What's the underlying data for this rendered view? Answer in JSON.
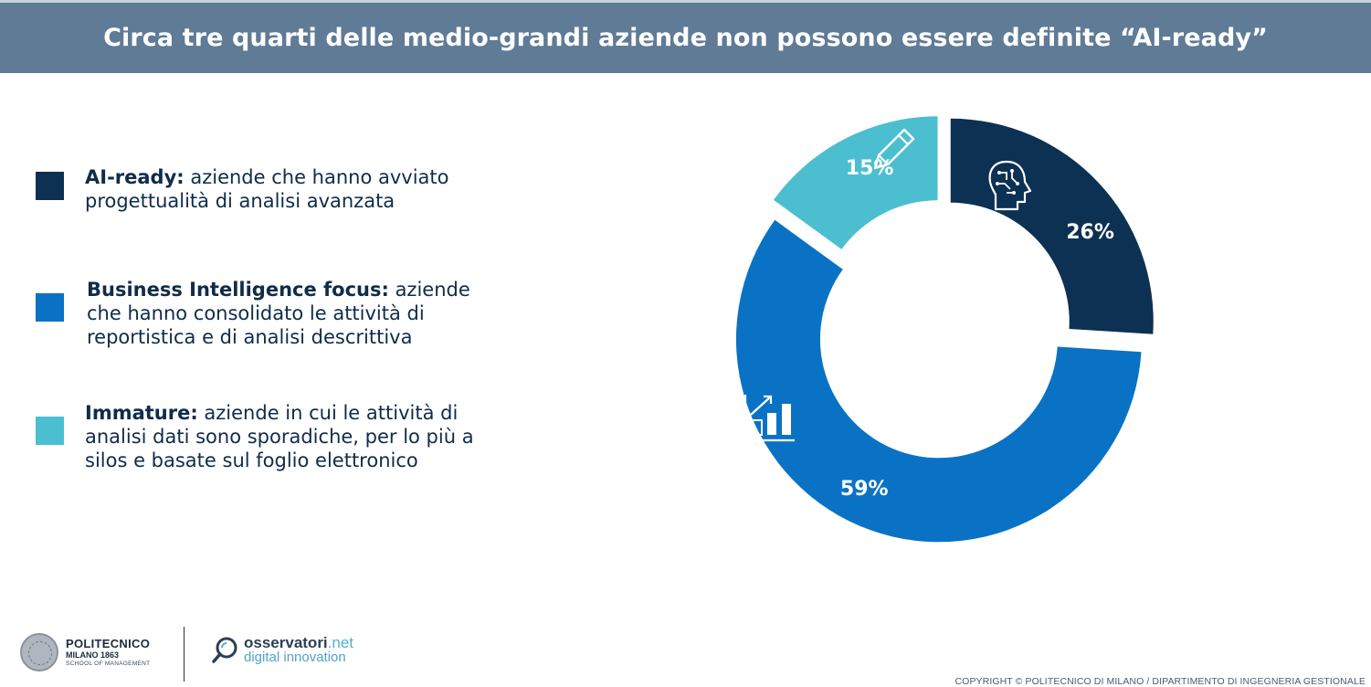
{
  "header": {
    "title": "Circa tre quarti delle medio-grandi aziende non possono essere definite “AI-ready”"
  },
  "legend": [
    {
      "term": "AI-ready:",
      "desc": " aziende che hanno avviato progettualità di analisi avanzata",
      "color": "#0d3153"
    },
    {
      "term": "Business Intelligence focus:",
      "desc": " aziende che hanno consolidato le attività di reportistica e di analisi descrittiva",
      "color": "#0a72c4"
    },
    {
      "term": "Immature:",
      "desc": " aziende in cui le attività di analisi dati sono sporadiche, per lo più a silos e basate sul foglio elettronico",
      "color": "#4bbfcf"
    }
  ],
  "chart_data": {
    "type": "pie",
    "categories": [
      "AI-ready",
      "Business Intelligence focus",
      "Immature"
    ],
    "values": [
      26,
      59,
      15
    ],
    "labels": [
      "26%",
      "59%",
      "15%"
    ],
    "colors": [
      "#0d3153",
      "#0a72c4",
      "#4bbfcf"
    ],
    "icons": [
      "brain-circuit-icon",
      "bar-chart-growth-icon",
      "pencil-icon"
    ],
    "style": "exploded-donut"
  },
  "footer": {
    "polimi_line1": "POLITECNICO",
    "polimi_line2": "MILANO 1863",
    "polimi_line3": "SCHOOL OF MANAGEMENT",
    "obs_name": "osservatori",
    "obs_tld": ".net",
    "obs_tagline": "digital innovation",
    "copyright": "COPYRIGHT © POLITECNICO DI MILANO / DIPARTIMENTO DI INGEGNERIA GESTIONALE"
  }
}
